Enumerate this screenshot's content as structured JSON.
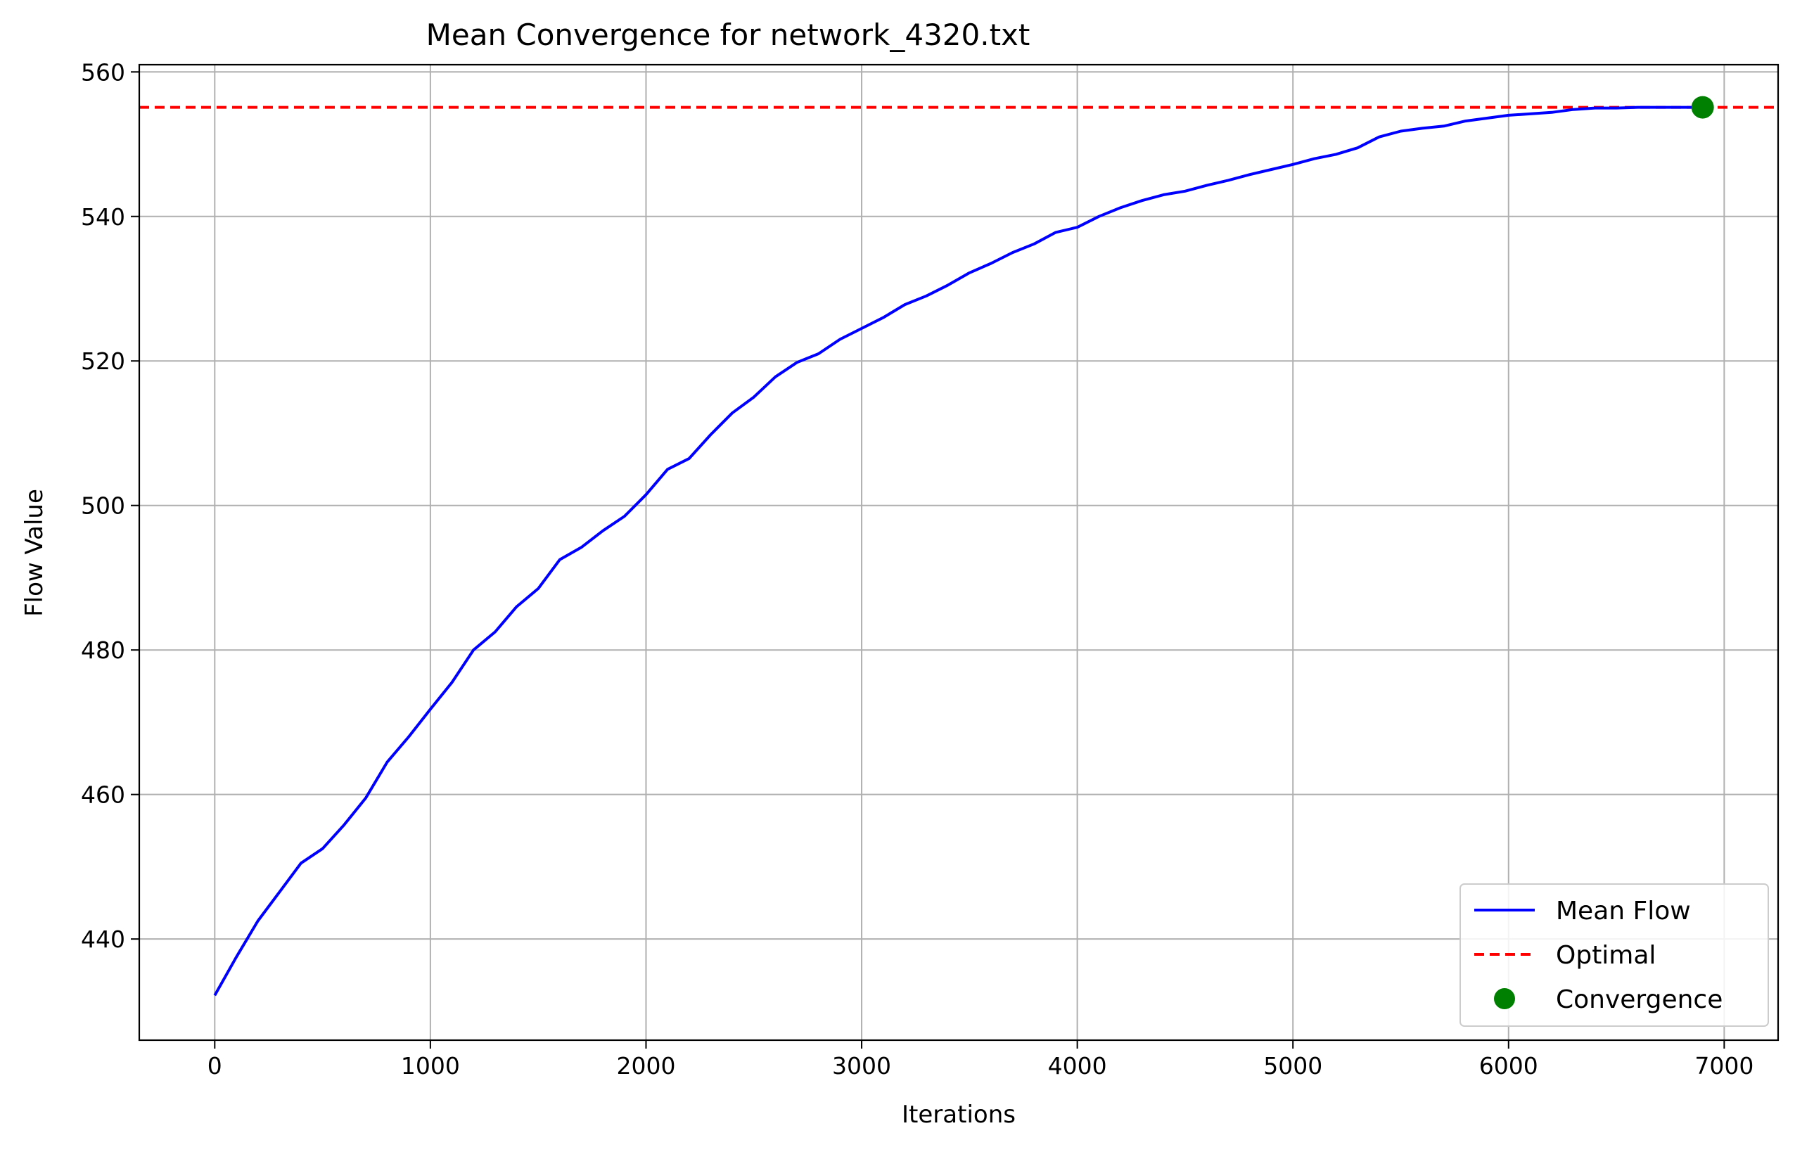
{
  "chart_data": {
    "type": "line",
    "title": "Mean Convergence for network_4320.txt",
    "xlabel": "Iterations",
    "ylabel": "Flow Value",
    "xlim": [
      -350,
      7250
    ],
    "ylim": [
      426,
      561
    ],
    "xticks": [
      0,
      1000,
      2000,
      3000,
      4000,
      5000,
      6000,
      7000
    ],
    "yticks": [
      440,
      460,
      480,
      500,
      520,
      540,
      560
    ],
    "xtick_labels": [
      "0",
      "1000",
      "2000",
      "3000",
      "4000",
      "5000",
      "6000",
      "7000"
    ],
    "ytick_labels": [
      "440",
      "460",
      "480",
      "500",
      "520",
      "540",
      "560"
    ],
    "grid": true,
    "legend_position": "lower-right",
    "colors": {
      "mean_flow": "#0000ff",
      "optimal": "#ff0000",
      "convergence": "#008000",
      "grid": "#b0b0b0"
    },
    "series": [
      {
        "name": "Mean Flow",
        "style": "solid",
        "x": [
          0,
          100,
          200,
          300,
          400,
          500,
          600,
          700,
          800,
          900,
          1000,
          1100,
          1200,
          1300,
          1400,
          1500,
          1600,
          1700,
          1800,
          1900,
          2000,
          2100,
          2200,
          2300,
          2400,
          2500,
          2600,
          2700,
          2800,
          2900,
          3000,
          3100,
          3200,
          3300,
          3400,
          3500,
          3600,
          3700,
          3800,
          3900,
          4000,
          4100,
          4200,
          4300,
          4400,
          4500,
          4600,
          4700,
          4800,
          4900,
          5000,
          5100,
          5200,
          5300,
          5400,
          5500,
          5600,
          5700,
          5800,
          5900,
          6000,
          6100,
          6200,
          6300,
          6400,
          6500,
          6600,
          6700,
          6800,
          6900
        ],
        "values": [
          432.2,
          437.5,
          442.5,
          446.5,
          450.5,
          452.5,
          455.8,
          459.5,
          464.5,
          468.0,
          471.8,
          475.5,
          480.0,
          482.5,
          486.0,
          488.5,
          492.5,
          494.2,
          496.5,
          498.5,
          501.5,
          505.0,
          506.5,
          509.8,
          512.8,
          515.0,
          517.8,
          519.8,
          521.0,
          523.0,
          524.5,
          526.0,
          527.8,
          529.0,
          530.5,
          532.2,
          533.5,
          535.0,
          536.2,
          537.8,
          538.5,
          540.0,
          541.2,
          542.2,
          543.0,
          543.5,
          544.3,
          545.0,
          545.8,
          546.5,
          547.2,
          548.0,
          548.6,
          549.5,
          551.0,
          551.8,
          552.2,
          552.5,
          553.2,
          553.6,
          554.0,
          554.2,
          554.4,
          554.8,
          555.0,
          555.0,
          555.1,
          555.1,
          555.1,
          555.1
        ]
      },
      {
        "name": "Optimal",
        "style": "dashed",
        "y": 555.1
      },
      {
        "name": "Convergence",
        "style": "marker",
        "x": 6900,
        "y": 555.1
      }
    ]
  }
}
